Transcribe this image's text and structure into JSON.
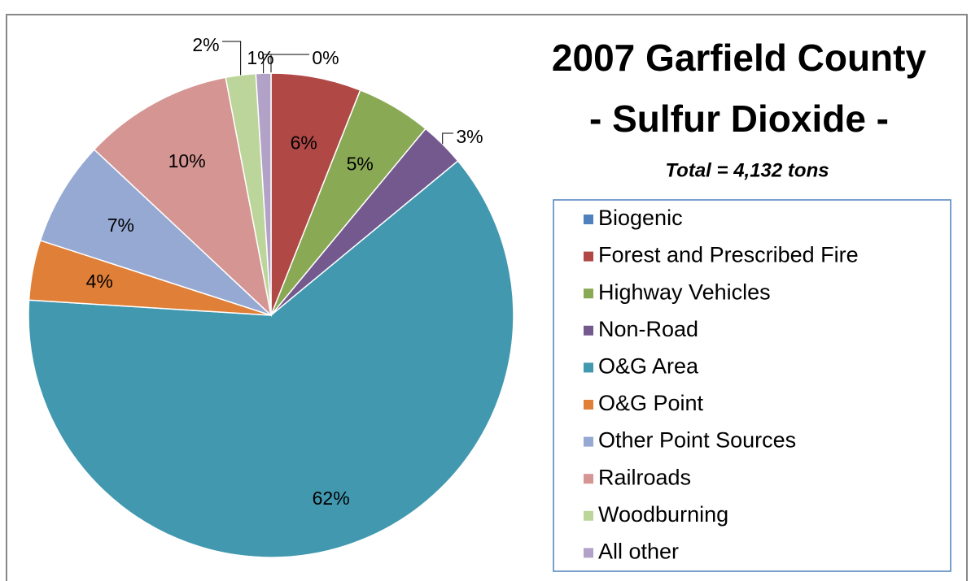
{
  "chart_data": {
    "type": "pie",
    "title": [
      "2007 Garfield County",
      "- Sulfur Dioxide -"
    ],
    "subtitle": "Total = 4,132 tons",
    "categories": [
      "Biogenic",
      "Forest and Prescribed Fire",
      "Highway Vehicles",
      "Non-Road",
      "O&G Area",
      "O&G Point",
      "Other Point Sources",
      "Railroads",
      "Woodburning",
      "All other"
    ],
    "values": [
      0,
      6,
      5,
      3,
      62,
      4,
      7,
      10,
      2,
      1
    ],
    "value_labels": [
      "0%",
      "6%",
      "5%",
      "3%",
      "62%",
      "4%",
      "7%",
      "10%",
      "2%",
      "1%"
    ],
    "colors": [
      "#4f81bd",
      "#b04846",
      "#8aa955",
      "#74598f",
      "#4198af",
      "#e07f37",
      "#95a9d3",
      "#d59593",
      "#bcd59a",
      "#b3a2c7"
    ],
    "legend": "right"
  }
}
